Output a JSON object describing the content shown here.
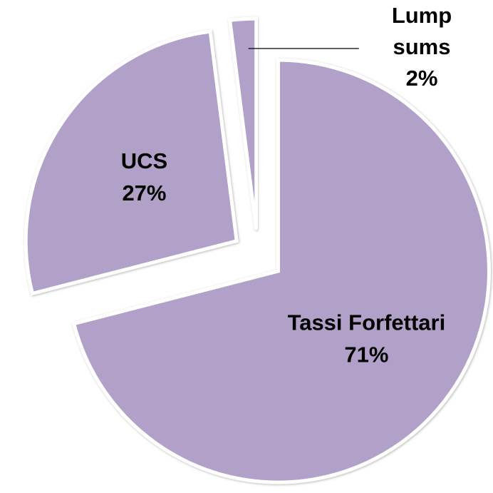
{
  "chart_data": {
    "type": "pie",
    "categories": [
      "Tassi Forfettari",
      "UCS",
      "Lump sums"
    ],
    "values": [
      71,
      27,
      2
    ],
    "value_labels": [
      "71%",
      "27%",
      "2%"
    ],
    "color": "#b1a0c7",
    "explode": true
  }
}
